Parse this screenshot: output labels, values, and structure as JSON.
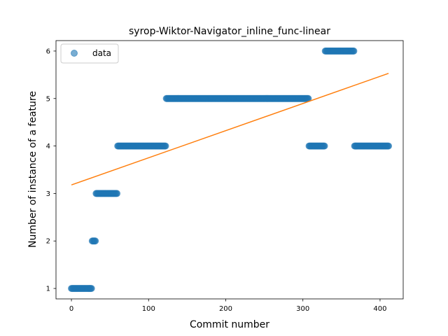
{
  "chart_data": {
    "type": "scatter",
    "title": "syrop-Wiktor-Navigator_inline_func-linear",
    "xlabel": "Commit number",
    "ylabel": "Number of instance of a feature",
    "xlim": [
      -20,
      430
    ],
    "ylim": [
      0.78,
      6.22
    ],
    "x_ticks": [
      0,
      100,
      200,
      300,
      400
    ],
    "y_ticks": [
      1,
      2,
      3,
      4,
      5,
      6
    ],
    "legend": {
      "position": "top-left",
      "entries": [
        "data"
      ]
    },
    "series": [
      {
        "name": "data",
        "kind": "scatter",
        "color": "#1f77b4",
        "segments": [
          {
            "x_start": 0,
            "x_end": 26,
            "y": 1
          },
          {
            "x_start": 27,
            "x_end": 31,
            "y": 2
          },
          {
            "x_start": 32,
            "x_end": 59,
            "y": 3
          },
          {
            "x_start": 60,
            "x_end": 122,
            "y": 4
          },
          {
            "x_start": 123,
            "x_end": 307,
            "y": 5
          },
          {
            "x_start": 308,
            "x_end": 328,
            "y": 4
          },
          {
            "x_start": 329,
            "x_end": 366,
            "y": 6
          },
          {
            "x_start": 367,
            "x_end": 411,
            "y": 4
          }
        ]
      },
      {
        "name": "",
        "kind": "line",
        "color": "#ff7f0e",
        "x": [
          0,
          411
        ],
        "y": [
          3.18,
          5.53
        ]
      }
    ]
  }
}
